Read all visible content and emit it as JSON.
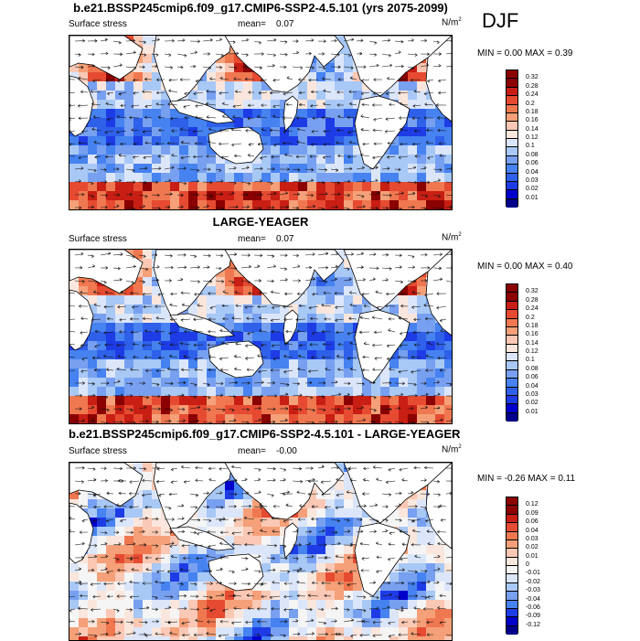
{
  "season": "DJF",
  "units_base": "N/m",
  "units_exp": "2",
  "panels": [
    {
      "title": "b.e21.BSSP245cmip6.f09_g17.CMIP6-SSP2-4.5.101 (yrs 2075-2099)",
      "variable": "Surface stress",
      "mean_label": "mean=",
      "mean": "0.07",
      "min_max": "MIN =   0.00 MAX =   0.39",
      "scale_type": "sequential",
      "levels": [
        "0.32",
        "0.28",
        "0.24",
        "0.2",
        "0.18",
        "0.16",
        "0.14",
        "0.12",
        "0.1",
        "0.08",
        "0.06",
        "0.04",
        "0.03",
        "0.02",
        "0.01"
      ]
    },
    {
      "title": "LARGE-YEAGER",
      "variable": "Surface stress",
      "mean_label": "mean=",
      "mean": "0.07",
      "min_max": "MIN =   0.00 MAX =   0.40",
      "scale_type": "sequential",
      "levels": [
        "0.32",
        "0.28",
        "0.24",
        "0.2",
        "0.18",
        "0.16",
        "0.14",
        "0.12",
        "0.1",
        "0.08",
        "0.06",
        "0.04",
        "0.03",
        "0.02",
        "0.01"
      ]
    },
    {
      "title": "b.e21.BSSP245cmip6.f09_g17.CMIP6-SSP2-4.5.101 - LARGE-YEAGER",
      "variable": "Surface stress",
      "mean_label": "mean=",
      "mean": "-0.00",
      "min_max": "MIN =  -0.26 MAX =   0.11",
      "scale_type": "diverging",
      "levels": [
        "0.12",
        "0.09",
        "0.06",
        "0.04",
        "0.03",
        "0.02",
        "0.01",
        "0",
        "-0.01",
        "-0.02",
        "-0.03",
        "-0.04",
        "-0.06",
        "-0.09",
        "-0.12"
      ]
    }
  ],
  "colors": {
    "sequential": [
      "#00008b",
      "#0000cd",
      "#1e3ce6",
      "#2e60ea",
      "#4682f0",
      "#78a0f0",
      "#a8c8f5",
      "#dce6fa",
      "#fae6dc",
      "#fac8b4",
      "#f5a078",
      "#f07850",
      "#e64b32",
      "#c81e14",
      "#8b0000"
    ],
    "diverging": [
      "#00008b",
      "#0000cd",
      "#1e3ce6",
      "#4682f0",
      "#78a0f0",
      "#a8c8f5",
      "#dce6fa",
      "#f5f5f5",
      "#fae6dc",
      "#fac8b4",
      "#f5a078",
      "#f07850",
      "#e64b32",
      "#c81e14",
      "#8b0000"
    ]
  }
}
